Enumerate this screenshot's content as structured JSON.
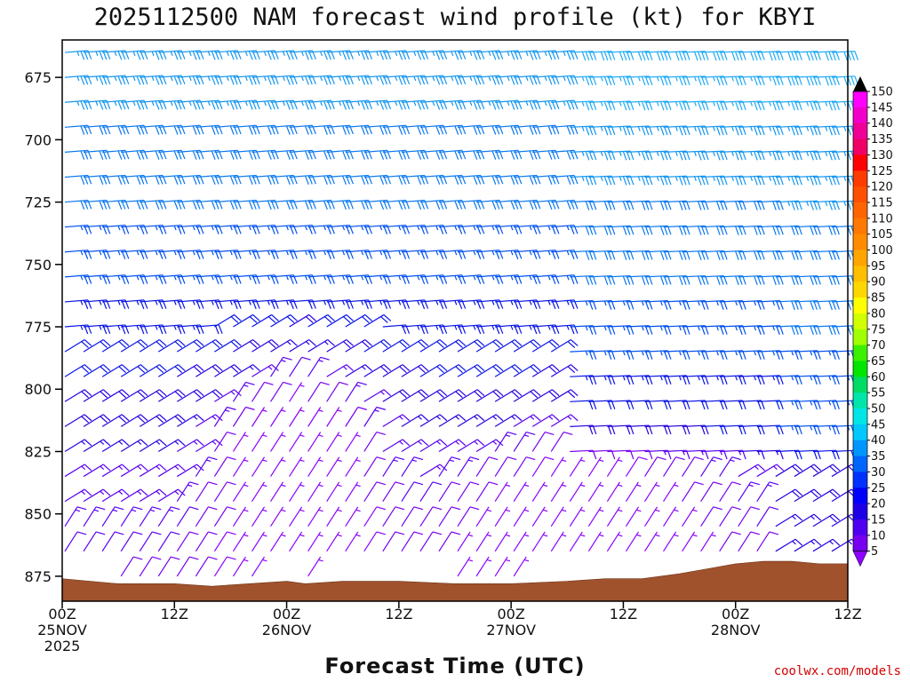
{
  "chart_data": {
    "type": "wind-barb-profile",
    "title": "2025112500 NAM forecast wind profile (kt) for KBYI",
    "xlabel": "Forecast Time (UTC)",
    "ylabel": "",
    "x_range_hours": [
      0,
      84
    ],
    "y_range_hpa": [
      885,
      660
    ],
    "x_ticks": [
      {
        "hour": 0,
        "line1": "00Z",
        "line2": "25NOV",
        "line3": "2025"
      },
      {
        "hour": 12,
        "line1": "12Z",
        "line2": "",
        "line3": ""
      },
      {
        "hour": 24,
        "line1": "00Z",
        "line2": "26NOV",
        "line3": ""
      },
      {
        "hour": 36,
        "line1": "12Z",
        "line2": "",
        "line3": ""
      },
      {
        "hour": 48,
        "line1": "00Z",
        "line2": "27NOV",
        "line3": ""
      },
      {
        "hour": 60,
        "line1": "12Z",
        "line2": "",
        "line3": ""
      },
      {
        "hour": 72,
        "line1": "00Z",
        "line2": "28NOV",
        "line3": ""
      },
      {
        "hour": 84,
        "line1": "12Z",
        "line2": "",
        "line3": ""
      }
    ],
    "y_ticks": [
      {
        "p": 675,
        "label": "675"
      },
      {
        "p": 700,
        "label": "700"
      },
      {
        "p": 725,
        "label": "725"
      },
      {
        "p": 750,
        "label": "750"
      },
      {
        "p": 775,
        "label": "775"
      },
      {
        "p": 800,
        "label": "800"
      },
      {
        "p": 825,
        "label": "825"
      },
      {
        "p": 850,
        "label": "850"
      },
      {
        "p": 875,
        "label": "875"
      }
    ],
    "colorbar": {
      "levels": [
        "150",
        "145",
        "140",
        "135",
        "130",
        "125",
        "120",
        "115",
        "110",
        "105",
        "100",
        "95",
        "90",
        "85",
        "80",
        "75",
        "70",
        "65",
        "60",
        "55",
        "50",
        "45",
        "40",
        "35",
        "30",
        "25",
        "20",
        "15",
        "10",
        "5"
      ],
      "colors": [
        "#ff00ff",
        "#f000c8",
        "#f00096",
        "#f00064",
        "#ff0000",
        "#ff3c00",
        "#ff5000",
        "#ff6400",
        "#ff7800",
        "#ff8c00",
        "#ffa500",
        "#ffbe00",
        "#ffd700",
        "#ffff00",
        "#d2ff00",
        "#a0ff00",
        "#3cf000",
        "#00e600",
        "#00dc64",
        "#00e6aa",
        "#00e6e6",
        "#00c8ff",
        "#0096ff",
        "#0064ff",
        "#0032ff",
        "#0000ff",
        "#1e00e6",
        "#5000f0",
        "#7800f0"
      ],
      "top_color": "#000000",
      "bottom_color": "#8c00ff"
    },
    "terrain_top_hpa": [
      {
        "hour": 0,
        "p": 876
      },
      {
        "hour": 6,
        "p": 878
      },
      {
        "hour": 12,
        "p": 878
      },
      {
        "hour": 16,
        "p": 879
      },
      {
        "hour": 20,
        "p": 878
      },
      {
        "hour": 24,
        "p": 877
      },
      {
        "hour": 26,
        "p": 878
      },
      {
        "hour": 30,
        "p": 877
      },
      {
        "hour": 36,
        "p": 877
      },
      {
        "hour": 42,
        "p": 878
      },
      {
        "hour": 48,
        "p": 878
      },
      {
        "hour": 54,
        "p": 877
      },
      {
        "hour": 58,
        "p": 876
      },
      {
        "hour": 62,
        "p": 876
      },
      {
        "hour": 66,
        "p": 874
      },
      {
        "hour": 69,
        "p": 872
      },
      {
        "hour": 72,
        "p": 870
      },
      {
        "hour": 75,
        "p": 869
      },
      {
        "hour": 78,
        "p": 869
      },
      {
        "hour": 81,
        "p": 870
      },
      {
        "hour": 84,
        "p": 870
      }
    ],
    "barbs": {
      "time_step_hours": 1,
      "pressure_levels_hpa": [
        665,
        675,
        685,
        695,
        705,
        715,
        725,
        735,
        745,
        755,
        765,
        775,
        785,
        795,
        805,
        815,
        825,
        835,
        845,
        855,
        865,
        875
      ],
      "speed_kt_sample": [
        {
          "hour": 0,
          "p": 700,
          "speed": 30
        },
        {
          "hour": 24,
          "p": 820,
          "speed": 8
        },
        {
          "hour": 48,
          "p": 750,
          "speed": 22
        },
        {
          "hour": 72,
          "p": 700,
          "speed": 28
        }
      ]
    }
  },
  "colors": {
    "terrain": "#a0522d",
    "axes": "#000000"
  },
  "credit": "coolwx.com/models"
}
